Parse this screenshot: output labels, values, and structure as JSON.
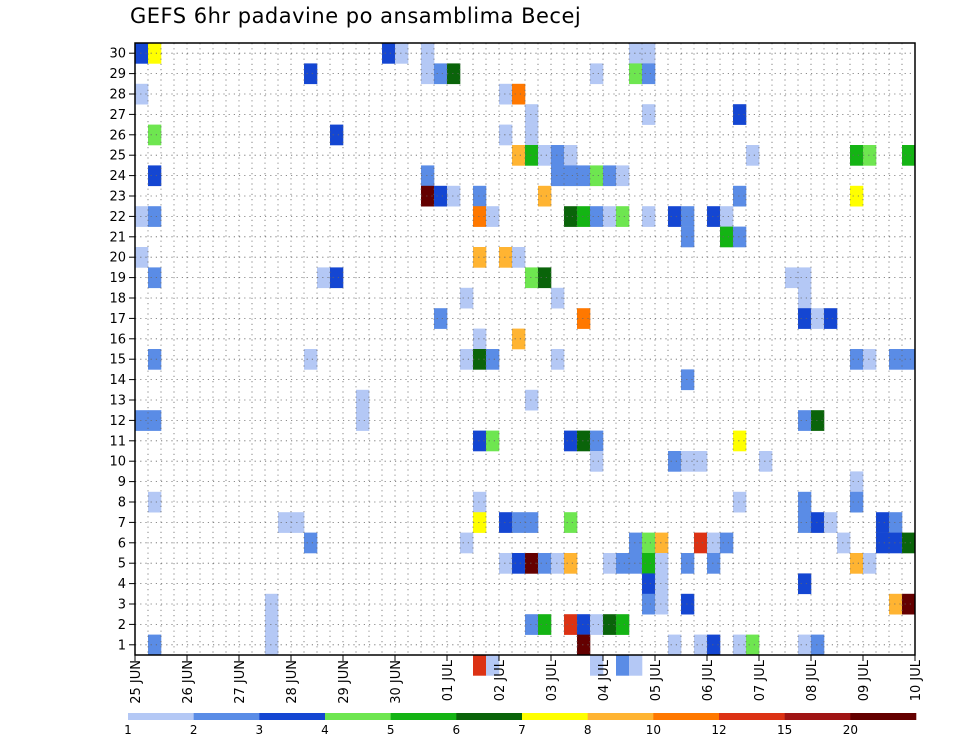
{
  "chart_data": {
    "type": "heatmap",
    "title": "GEFS 6hr padavine po ansamblima Becej",
    "xlabel": "",
    "ylabel": "",
    "x_tick_labels": [
      "25 JUN",
      "26 JUN",
      "27 JUN",
      "28 JUN",
      "29 JUN",
      "30 JUN",
      "01 JUL",
      "02 JUL",
      "03 JUL",
      "04 JUL",
      "05 JUL",
      "06 JUL",
      "07 JUL",
      "08 JUL",
      "09 JUL",
      "10 JUL"
    ],
    "y_tick_labels": [
      "1",
      "2",
      "3",
      "4",
      "5",
      "6",
      "7",
      "8",
      "9",
      "10",
      "11",
      "12",
      "13",
      "14",
      "15",
      "16",
      "17",
      "18",
      "19",
      "20",
      "21",
      "22",
      "23",
      "24",
      "25",
      "26",
      "27",
      "28",
      "29",
      "30"
    ],
    "ensemble_members": 30,
    "time_steps": 60,
    "time_step_hours": 6,
    "grid": true,
    "legend_placement": "bottom",
    "colorbar": {
      "labels": [
        "1",
        "2",
        "3",
        "4",
        "5",
        "6",
        "7",
        "8",
        "10",
        "12",
        "15",
        "20"
      ],
      "colors": [
        "#b4c8f5",
        "#5a8ce6",
        "#1446d2",
        "#6ee650",
        "#14b414",
        "#0a640a",
        "#ffff00",
        "#ffb432",
        "#ff7800",
        "#dc3214",
        "#a01414",
        "#640000"
      ]
    },
    "cells": [
      [
        30,
        1,
        3
      ],
      [
        30,
        2,
        7
      ],
      [
        30,
        20,
        3
      ],
      [
        30,
        21,
        1
      ],
      [
        30,
        23,
        1
      ],
      [
        30,
        39,
        1
      ],
      [
        30,
        40,
        1
      ],
      [
        29,
        14,
        3
      ],
      [
        29,
        23,
        1
      ],
      [
        29,
        24,
        2
      ],
      [
        29,
        25,
        6
      ],
      [
        29,
        36,
        1
      ],
      [
        29,
        39,
        4
      ],
      [
        29,
        40,
        2
      ],
      [
        28,
        1,
        1
      ],
      [
        28,
        29,
        1
      ],
      [
        28,
        30,
        9
      ],
      [
        27,
        31,
        1
      ],
      [
        27,
        40,
        1
      ],
      [
        27,
        47,
        3
      ],
      [
        26,
        2,
        4
      ],
      [
        26,
        16,
        3
      ],
      [
        26,
        29,
        1
      ],
      [
        26,
        31,
        1
      ],
      [
        25,
        30,
        8
      ],
      [
        25,
        31,
        5
      ],
      [
        25,
        32,
        1
      ],
      [
        25,
        33,
        2
      ],
      [
        25,
        34,
        1
      ],
      [
        25,
        48,
        1
      ],
      [
        25,
        56,
        5
      ],
      [
        25,
        57,
        4
      ],
      [
        25,
        60,
        5
      ],
      [
        24,
        2,
        3
      ],
      [
        24,
        23,
        2
      ],
      [
        24,
        33,
        2
      ],
      [
        24,
        34,
        2
      ],
      [
        24,
        35,
        2
      ],
      [
        24,
        36,
        4
      ],
      [
        24,
        37,
        2
      ],
      [
        24,
        38,
        1
      ],
      [
        23,
        23,
        12
      ],
      [
        23,
        24,
        3
      ],
      [
        23,
        25,
        1
      ],
      [
        23,
        27,
        2
      ],
      [
        23,
        32,
        8
      ],
      [
        23,
        47,
        2
      ],
      [
        23,
        56,
        7
      ],
      [
        22,
        1,
        1
      ],
      [
        22,
        2,
        2
      ],
      [
        22,
        27,
        9
      ],
      [
        22,
        28,
        1
      ],
      [
        22,
        34,
        6
      ],
      [
        22,
        35,
        5
      ],
      [
        22,
        36,
        2
      ],
      [
        22,
        37,
        1
      ],
      [
        22,
        38,
        4
      ],
      [
        22,
        40,
        1
      ],
      [
        22,
        42,
        3
      ],
      [
        22,
        43,
        2
      ],
      [
        22,
        45,
        3
      ],
      [
        22,
        46,
        1
      ],
      [
        21,
        43,
        2
      ],
      [
        21,
        46,
        5
      ],
      [
        21,
        47,
        2
      ],
      [
        20,
        1,
        1
      ],
      [
        20,
        27,
        8
      ],
      [
        20,
        29,
        8
      ],
      [
        20,
        30,
        1
      ],
      [
        19,
        2,
        2
      ],
      [
        19,
        15,
        1
      ],
      [
        19,
        16,
        3
      ],
      [
        19,
        31,
        4
      ],
      [
        19,
        32,
        6
      ],
      [
        19,
        51,
        1
      ],
      [
        19,
        52,
        1
      ],
      [
        18,
        26,
        1
      ],
      [
        18,
        33,
        1
      ],
      [
        18,
        52,
        1
      ],
      [
        17,
        24,
        2
      ],
      [
        17,
        35,
        9
      ],
      [
        17,
        52,
        3
      ],
      [
        17,
        53,
        1
      ],
      [
        17,
        54,
        3
      ],
      [
        16,
        27,
        1
      ],
      [
        16,
        30,
        8
      ],
      [
        15,
        2,
        2
      ],
      [
        15,
        14,
        1
      ],
      [
        15,
        26,
        1
      ],
      [
        15,
        27,
        6
      ],
      [
        15,
        28,
        2
      ],
      [
        15,
        33,
        1
      ],
      [
        15,
        56,
        2
      ],
      [
        15,
        57,
        1
      ],
      [
        15,
        59,
        2
      ],
      [
        15,
        60,
        2
      ],
      [
        14,
        43,
        2
      ],
      [
        13,
        18,
        1
      ],
      [
        13,
        31,
        1
      ],
      [
        12,
        1,
        2
      ],
      [
        12,
        2,
        2
      ],
      [
        12,
        18,
        1
      ],
      [
        12,
        52,
        2
      ],
      [
        12,
        53,
        6
      ],
      [
        11,
        27,
        3
      ],
      [
        11,
        28,
        4
      ],
      [
        11,
        34,
        3
      ],
      [
        11,
        35,
        6
      ],
      [
        11,
        36,
        2
      ],
      [
        11,
        47,
        7
      ],
      [
        10,
        36,
        1
      ],
      [
        10,
        42,
        2
      ],
      [
        10,
        43,
        1
      ],
      [
        10,
        44,
        1
      ],
      [
        10,
        49,
        1
      ],
      [
        9,
        56,
        1
      ],
      [
        8,
        2,
        1
      ],
      [
        8,
        27,
        1
      ],
      [
        8,
        47,
        1
      ],
      [
        8,
        52,
        2
      ],
      [
        8,
        56,
        2
      ],
      [
        7,
        12,
        1
      ],
      [
        7,
        13,
        1
      ],
      [
        7,
        27,
        7
      ],
      [
        7,
        29,
        3
      ],
      [
        7,
        30,
        2
      ],
      [
        7,
        31,
        2
      ],
      [
        7,
        34,
        4
      ],
      [
        7,
        52,
        2
      ],
      [
        7,
        53,
        3
      ],
      [
        7,
        54,
        1
      ],
      [
        7,
        58,
        3
      ],
      [
        7,
        59,
        2
      ],
      [
        6,
        14,
        2
      ],
      [
        6,
        26,
        1
      ],
      [
        6,
        39,
        2
      ],
      [
        6,
        40,
        4
      ],
      [
        6,
        41,
        8
      ],
      [
        6,
        44,
        10
      ],
      [
        6,
        45,
        1
      ],
      [
        6,
        46,
        2
      ],
      [
        6,
        55,
        1
      ],
      [
        6,
        58,
        3
      ],
      [
        6,
        59,
        3
      ],
      [
        6,
        60,
        6
      ],
      [
        5,
        29,
        1
      ],
      [
        5,
        30,
        3
      ],
      [
        5,
        31,
        12
      ],
      [
        5,
        32,
        2
      ],
      [
        5,
        33,
        1
      ],
      [
        5,
        34,
        8
      ],
      [
        5,
        37,
        1
      ],
      [
        5,
        38,
        2
      ],
      [
        5,
        39,
        2
      ],
      [
        5,
        40,
        5
      ],
      [
        5,
        41,
        1
      ],
      [
        5,
        43,
        2
      ],
      [
        5,
        45,
        2
      ],
      [
        5,
        56,
        8
      ],
      [
        5,
        57,
        1
      ],
      [
        4,
        40,
        3
      ],
      [
        4,
        41,
        1
      ],
      [
        4,
        52,
        3
      ],
      [
        3,
        11,
        1
      ],
      [
        3,
        40,
        2
      ],
      [
        3,
        41,
        1
      ],
      [
        3,
        43,
        3
      ],
      [
        3,
        59,
        8
      ],
      [
        3,
        60,
        12
      ],
      [
        2,
        11,
        1
      ],
      [
        2,
        31,
        2
      ],
      [
        2,
        32,
        5
      ],
      [
        2,
        34,
        10
      ],
      [
        2,
        35,
        3
      ],
      [
        2,
        36,
        1
      ],
      [
        2,
        37,
        6
      ],
      [
        2,
        38,
        5
      ],
      [
        1,
        2,
        2
      ],
      [
        1,
        11,
        1
      ],
      [
        1,
        35,
        12
      ],
      [
        1,
        42,
        1
      ],
      [
        1,
        44,
        1
      ],
      [
        1,
        45,
        3
      ],
      [
        1,
        47,
        1
      ],
      [
        1,
        48,
        4
      ],
      [
        1,
        52,
        1
      ],
      [
        1,
        53,
        2
      ],
      [
        0,
        27,
        10
      ],
      [
        0,
        28,
        1
      ],
      [
        0,
        36,
        1
      ],
      [
        0,
        38,
        2
      ],
      [
        0,
        39,
        1
      ]
    ]
  }
}
